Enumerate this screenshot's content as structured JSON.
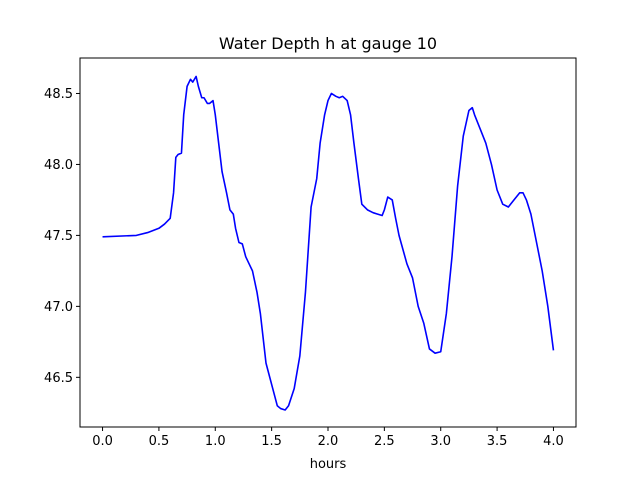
{
  "chart_data": {
    "type": "line",
    "title": "Water Depth h at gauge 10",
    "xlabel": "hours",
    "ylabel": "",
    "xlim": [
      -0.2,
      4.2
    ],
    "ylim": [
      46.15,
      48.75
    ],
    "x_ticks": [
      {
        "value": 0.0,
        "label": "0.0"
      },
      {
        "value": 0.5,
        "label": "0.5"
      },
      {
        "value": 1.0,
        "label": "1.0"
      },
      {
        "value": 1.5,
        "label": "1.5"
      },
      {
        "value": 2.0,
        "label": "2.0"
      },
      {
        "value": 2.5,
        "label": "2.5"
      },
      {
        "value": 3.0,
        "label": "3.0"
      },
      {
        "value": 3.5,
        "label": "3.5"
      },
      {
        "value": 4.0,
        "label": "4.0"
      }
    ],
    "y_ticks": [
      {
        "value": 46.5,
        "label": "46.5"
      },
      {
        "value": 47.0,
        "label": "47.0"
      },
      {
        "value": 47.5,
        "label": "47.5"
      },
      {
        "value": 48.0,
        "label": "48.0"
      },
      {
        "value": 48.5,
        "label": "48.5"
      }
    ],
    "grid": false,
    "series": [
      {
        "color": "#0000ff",
        "x": [
          0.0,
          0.3,
          0.4,
          0.5,
          0.55,
          0.6,
          0.63,
          0.65,
          0.67,
          0.7,
          0.72,
          0.75,
          0.78,
          0.8,
          0.83,
          0.85,
          0.88,
          0.9,
          0.93,
          0.95,
          0.98,
          1.0,
          1.03,
          1.06,
          1.1,
          1.13,
          1.16,
          1.18,
          1.21,
          1.24,
          1.27,
          1.3,
          1.33,
          1.37,
          1.4,
          1.45,
          1.5,
          1.55,
          1.58,
          1.62,
          1.65,
          1.7,
          1.75,
          1.8,
          1.85,
          1.9,
          1.93,
          1.97,
          2.0,
          2.03,
          2.07,
          2.1,
          2.13,
          2.17,
          2.2,
          2.23,
          2.27,
          2.3,
          2.35,
          2.4,
          2.44,
          2.48,
          2.5,
          2.53,
          2.57,
          2.6,
          2.63,
          2.7,
          2.75,
          2.8,
          2.85,
          2.9,
          2.95,
          3.0,
          3.05,
          3.1,
          3.15,
          3.2,
          3.25,
          3.28,
          3.3,
          3.35,
          3.4,
          3.45,
          3.5,
          3.55,
          3.6,
          3.65,
          3.7,
          3.73,
          3.76,
          3.8,
          3.85,
          3.9,
          3.95,
          4.0
        ],
        "y": [
          47.49,
          47.5,
          47.52,
          47.55,
          47.58,
          47.62,
          47.8,
          48.05,
          48.07,
          48.08,
          48.35,
          48.55,
          48.6,
          48.58,
          48.62,
          48.55,
          48.47,
          48.47,
          48.43,
          48.43,
          48.45,
          48.35,
          48.15,
          47.95,
          47.8,
          47.68,
          47.65,
          47.55,
          47.45,
          47.44,
          47.35,
          47.3,
          47.25,
          47.1,
          46.95,
          46.6,
          46.45,
          46.3,
          46.28,
          46.27,
          46.3,
          46.42,
          46.65,
          47.1,
          47.7,
          47.9,
          48.15,
          48.35,
          48.45,
          48.5,
          48.48,
          48.47,
          48.48,
          48.45,
          48.35,
          48.15,
          47.9,
          47.72,
          47.68,
          47.66,
          47.65,
          47.64,
          47.68,
          47.77,
          47.75,
          47.62,
          47.5,
          47.3,
          47.2,
          47.0,
          46.88,
          46.7,
          46.67,
          46.68,
          46.95,
          47.35,
          47.85,
          48.2,
          48.38,
          48.4,
          48.35,
          48.25,
          48.15,
          48.0,
          47.82,
          47.72,
          47.7,
          47.75,
          47.8,
          47.8,
          47.75,
          47.65,
          47.45,
          47.25,
          47.0,
          46.69
        ]
      }
    ]
  }
}
